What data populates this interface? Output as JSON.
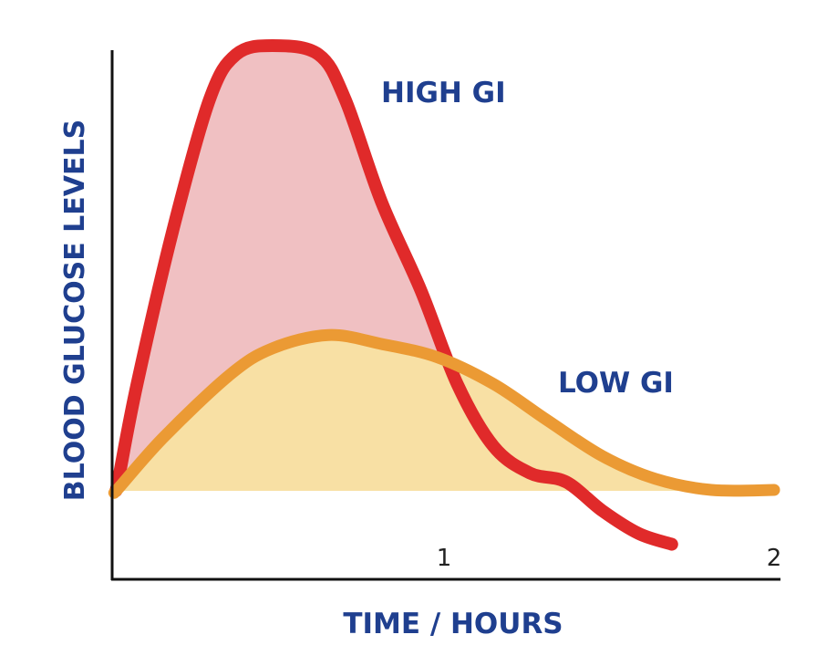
{
  "chart_data": {
    "type": "area",
    "title": "",
    "xlabel": "TIME / HOURS",
    "ylabel": "BLOOD GLUCOSE LEVELS",
    "xlim": [
      0,
      2.05
    ],
    "ylim": [
      -20,
      100
    ],
    "x_ticks": [
      "1",
      "2"
    ],
    "x_tick_values": [
      1,
      2
    ],
    "baseline": 0,
    "grid": false,
    "series": [
      {
        "name": "HIGH GI",
        "color": "#e02a2a",
        "fill": "#f0c0c2",
        "x": [
          0.014,
          0.07,
          0.18,
          0.29,
          0.37,
          0.48,
          0.62,
          0.7,
          0.81,
          0.93,
          1.04,
          1.15,
          1.26,
          1.37,
          1.48,
          1.59,
          1.69
        ],
        "y": [
          2.7,
          24,
          59,
          88,
          98,
          100,
          98,
          88,
          65,
          45,
          24,
          10,
          4,
          2,
          -4.5,
          -9.6,
          -12
        ]
      },
      {
        "name": "LOW GI",
        "color": "#eb9a34",
        "fill": "#f8e0a4",
        "x": [
          0.014,
          0.15,
          0.35,
          0.48,
          0.65,
          0.81,
          0.98,
          1.15,
          1.31,
          1.48,
          1.64,
          1.81,
          2.0
        ],
        "y": [
          0.6,
          12,
          26,
          32,
          35,
          33,
          30,
          24,
          16,
          7.8,
          2.7,
          0.2,
          0.2
        ]
      }
    ]
  }
}
